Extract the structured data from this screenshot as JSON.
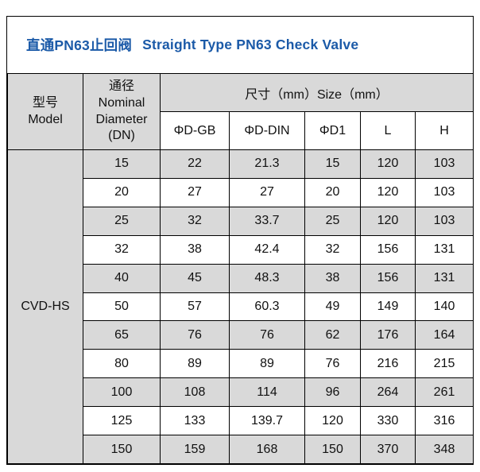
{
  "title": {
    "cn": "直通PN63止回阀",
    "en": "Straight Type PN63 Check Valve"
  },
  "colors": {
    "title_text": "#1b5aa8",
    "header_bg": "#d9d9d9",
    "row_alt_bg": "#d9d9d9",
    "border": "#000000",
    "text": "#111111"
  },
  "table": {
    "headers": {
      "model": "型号\nModel",
      "nominal_diameter": "通径\nNominal\nDiameter\n(DN)",
      "size": "尺寸（mm）Size（mm）",
      "sub": [
        "ΦD-GB",
        "ΦD-DIN",
        "ΦD1",
        "L",
        "H"
      ]
    },
    "model_value": "CVD-HS",
    "rows": [
      {
        "dn": "15",
        "values": [
          "22",
          "21.3",
          "15",
          "120",
          "103"
        ]
      },
      {
        "dn": "20",
        "values": [
          "27",
          "27",
          "20",
          "120",
          "103"
        ]
      },
      {
        "dn": "25",
        "values": [
          "32",
          "33.7",
          "25",
          "120",
          "103"
        ]
      },
      {
        "dn": "32",
        "values": [
          "38",
          "42.4",
          "32",
          "156",
          "131"
        ]
      },
      {
        "dn": "40",
        "values": [
          "45",
          "48.3",
          "38",
          "156",
          "131"
        ]
      },
      {
        "dn": "50",
        "values": [
          "57",
          "60.3",
          "49",
          "149",
          "140"
        ]
      },
      {
        "dn": "65",
        "values": [
          "76",
          "76",
          "62",
          "176",
          "164"
        ]
      },
      {
        "dn": "80",
        "values": [
          "89",
          "89",
          "76",
          "216",
          "215"
        ]
      },
      {
        "dn": "100",
        "values": [
          "108",
          "114",
          "96",
          "264",
          "261"
        ]
      },
      {
        "dn": "125",
        "values": [
          "133",
          "139.7",
          "120",
          "330",
          "316"
        ]
      },
      {
        "dn": "150",
        "values": [
          "159",
          "168",
          "150",
          "370",
          "348"
        ]
      }
    ]
  }
}
